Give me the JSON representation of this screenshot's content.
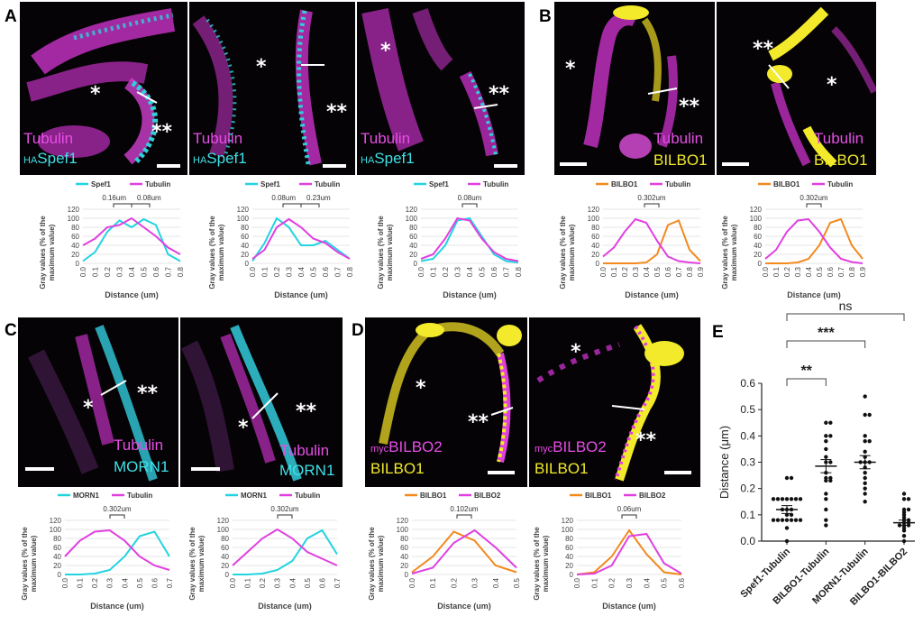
{
  "panels": {
    "A": {
      "letter": "A",
      "images": [
        {
          "tubulin": "Tubulin",
          "pre": "HA",
          "main": "Spef1"
        },
        {
          "tubulin": "Tubulin",
          "pre": "HA",
          "main": "Spef1"
        },
        {
          "tubulin": "Tubulin",
          "pre": "HA",
          "main": "Spef1"
        }
      ]
    },
    "B": {
      "letter": "B",
      "images": [
        {
          "tubulin": "Tubulin",
          "main": "BILBO1"
        },
        {
          "tubulin": "Tubulin",
          "main": "BILBO1"
        }
      ]
    },
    "C": {
      "letter": "C",
      "images": [
        {
          "tubulin": "Tubulin",
          "main": "MORN1"
        },
        {
          "tubulin": "Tubulin",
          "main": "MORN1"
        }
      ]
    },
    "D": {
      "letter": "D",
      "images": [
        {
          "pre": "myc",
          "bilbo2": "BILBO2",
          "main": "BILBO1"
        },
        {
          "pre": "myc",
          "bilbo2": "BILBO2",
          "main": "BILBO1"
        }
      ]
    },
    "E": {
      "letter": "E"
    }
  },
  "asterisk_single": "*",
  "asterisk_double": "**",
  "colors": {
    "tubulin": "#e040e0",
    "spef1": "#22d3e0",
    "bilbo1": "#f28a1e",
    "bilbo2": "#e040e0",
    "morn1": "#22d3e0",
    "yellow": "#f2ea2a"
  },
  "line_plot_text": {
    "ylabel1": "Gray values (% of the",
    "ylabel2": "maximum value)",
    "xlabel": "Distance (um)"
  },
  "chart_data": [
    {
      "type": "line",
      "id": "A1",
      "legend": [
        "Spef1",
        "Tubulin"
      ],
      "annotation": [
        "0.16um",
        "0.08um"
      ],
      "x": [
        0.0,
        0.1,
        0.2,
        0.3,
        0.4,
        0.5,
        0.6,
        0.7,
        0.8
      ],
      "xticks": [
        "0.0",
        "0.1",
        "0.2",
        "0.3",
        "0.4",
        "0.5",
        "0.6",
        "0.7",
        "0.8"
      ],
      "yticks": [
        "0",
        "20",
        "40",
        "60",
        "80",
        "100",
        "120"
      ],
      "ylim": [
        0,
        120
      ],
      "xlim": [
        0,
        0.8
      ],
      "series": [
        {
          "name": "Spef1",
          "values": [
            5,
            25,
            70,
            95,
            80,
            98,
            85,
            20,
            5
          ]
        },
        {
          "name": "Tubulin",
          "values": [
            40,
            55,
            80,
            85,
            100,
            80,
            60,
            35,
            20
          ]
        }
      ]
    },
    {
      "type": "line",
      "id": "A2",
      "legend": [
        "Spef1",
        "Tubulin"
      ],
      "annotation": [
        "0.08um",
        "0.23um"
      ],
      "x": [
        0.0,
        0.1,
        0.2,
        0.3,
        0.4,
        0.5,
        0.6,
        0.7,
        0.8
      ],
      "xticks": [
        "0.0",
        "0.1",
        "0.2",
        "0.3",
        "0.4",
        "0.5",
        "0.6",
        "0.7",
        "0.8"
      ],
      "yticks": [
        "0",
        "20",
        "40",
        "60",
        "80",
        "100",
        "120"
      ],
      "ylim": [
        0,
        120
      ],
      "xlim": [
        0,
        0.8
      ],
      "series": [
        {
          "name": "Spef1",
          "values": [
            5,
            45,
            100,
            80,
            40,
            40,
            50,
            30,
            10
          ]
        },
        {
          "name": "Tubulin",
          "values": [
            10,
            30,
            80,
            98,
            80,
            55,
            45,
            25,
            10
          ]
        }
      ]
    },
    {
      "type": "line",
      "id": "A3",
      "legend": [
        "Spef1",
        "Tubulin"
      ],
      "annotation": [
        "0.08um"
      ],
      "x": [
        0.0,
        0.1,
        0.2,
        0.3,
        0.4,
        0.5,
        0.6,
        0.7,
        0.8
      ],
      "xticks": [
        "0.0",
        "0.1",
        "0.2",
        "0.3",
        "0.4",
        "0.5",
        "0.6",
        "0.7",
        "0.8"
      ],
      "yticks": [
        "0",
        "20",
        "40",
        "60",
        "80",
        "100",
        "120"
      ],
      "ylim": [
        0,
        120
      ],
      "xlim": [
        0,
        0.8
      ],
      "series": [
        {
          "name": "Spef1",
          "values": [
            5,
            10,
            40,
            95,
            100,
            60,
            20,
            5,
            2
          ]
        },
        {
          "name": "Tubulin",
          "values": [
            10,
            20,
            55,
            100,
            95,
            55,
            25,
            10,
            5
          ]
        }
      ]
    },
    {
      "type": "line",
      "id": "B1",
      "legend": [
        "BILBO1",
        "Tubulin"
      ],
      "annotation": [
        "0.302um"
      ],
      "x": [
        0.0,
        0.1,
        0.2,
        0.3,
        0.4,
        0.5,
        0.6,
        0.7,
        0.8,
        0.9
      ],
      "xticks": [
        "0.0",
        "0.1",
        "0.2",
        "0.3",
        "0.4",
        "0.5",
        "0.6",
        "0.7",
        "0.8",
        "0.9"
      ],
      "yticks": [
        "0",
        "20",
        "40",
        "60",
        "80",
        "100",
        "120"
      ],
      "ylim": [
        0,
        120
      ],
      "xlim": [
        0,
        0.9
      ],
      "series": [
        {
          "name": "BILBO1",
          "values": [
            0,
            0,
            0,
            0,
            2,
            20,
            85,
            95,
            30,
            5
          ]
        },
        {
          "name": "Tubulin",
          "values": [
            15,
            35,
            70,
            98,
            90,
            50,
            15,
            5,
            2,
            0
          ]
        }
      ]
    },
    {
      "type": "line",
      "id": "B2",
      "legend": [
        "BILBO1",
        "Tubulin"
      ],
      "annotation": [
        "0.302um"
      ],
      "x": [
        0.0,
        0.1,
        0.2,
        0.3,
        0.4,
        0.5,
        0.6,
        0.7,
        0.8,
        0.9
      ],
      "xticks": [
        "0.0",
        "0.1",
        "0.2",
        "0.3",
        "0.4",
        "0.5",
        "0.6",
        "0.7",
        "0.8",
        "0.9"
      ],
      "yticks": [
        "0",
        "20",
        "40",
        "60",
        "80",
        "100",
        "120"
      ],
      "ylim": [
        0,
        120
      ],
      "xlim": [
        0,
        0.9
      ],
      "series": [
        {
          "name": "BILBO1",
          "values": [
            0,
            0,
            0,
            2,
            10,
            40,
            90,
            98,
            40,
            10
          ]
        },
        {
          "name": "Tubulin",
          "values": [
            10,
            30,
            70,
            95,
            98,
            70,
            35,
            10,
            3,
            0
          ]
        }
      ]
    },
    {
      "type": "line",
      "id": "C1",
      "legend": [
        "MORN1",
        "Tubulin"
      ],
      "annotation": [
        "0.302um"
      ],
      "x": [
        0.0,
        0.1,
        0.2,
        0.3,
        0.4,
        0.5,
        0.6,
        0.7
      ],
      "xticks": [
        "0.0",
        "0.1",
        "0.2",
        "0.3",
        "0.4",
        "0.5",
        "0.6",
        "0.7"
      ],
      "yticks": [
        "0",
        "20",
        "40",
        "60",
        "80",
        "100",
        "120"
      ],
      "ylim": [
        0,
        120
      ],
      "xlim": [
        0,
        0.7
      ],
      "series": [
        {
          "name": "MORN1",
          "values": [
            0,
            0,
            2,
            10,
            40,
            85,
            95,
            40
          ]
        },
        {
          "name": "Tubulin",
          "values": [
            40,
            75,
            95,
            98,
            75,
            40,
            20,
            10
          ]
        }
      ]
    },
    {
      "type": "line",
      "id": "C2",
      "legend": [
        "MORN1",
        "Tubulin"
      ],
      "annotation": [
        "0.302um"
      ],
      "x": [
        0.0,
        0.1,
        0.2,
        0.3,
        0.4,
        0.5,
        0.6,
        0.7
      ],
      "xticks": [
        "0.0",
        "0.1",
        "0.2",
        "0.3",
        "0.4",
        "0.5",
        "0.6",
        "0.7"
      ],
      "yticks": [
        "0",
        "20",
        "40",
        "60",
        "80",
        "100",
        "120"
      ],
      "ylim": [
        0,
        120
      ],
      "xlim": [
        0,
        0.7
      ],
      "series": [
        {
          "name": "MORN1",
          "values": [
            0,
            0,
            2,
            10,
            30,
            80,
            98,
            45
          ]
        },
        {
          "name": "Tubulin",
          "values": [
            20,
            50,
            80,
            100,
            80,
            50,
            35,
            20
          ]
        }
      ]
    },
    {
      "type": "line",
      "id": "D1",
      "legend": [
        "BILBO1",
        "BILBO2"
      ],
      "annotation": [
        "0.102um"
      ],
      "x": [
        0.0,
        0.1,
        0.2,
        0.3,
        0.4,
        0.5
      ],
      "xticks": [
        "0.0",
        "0.1",
        "0.2",
        "0.3",
        "0.4",
        "0.5"
      ],
      "yticks": [
        "0",
        "20",
        "40",
        "60",
        "80",
        "100",
        "120"
      ],
      "ylim": [
        0,
        120
      ],
      "xlim": [
        0,
        0.5
      ],
      "series": [
        {
          "name": "BILBO1",
          "values": [
            5,
            40,
            95,
            75,
            20,
            5
          ]
        },
        {
          "name": "BILBO2",
          "values": [
            2,
            15,
            70,
            98,
            60,
            15
          ]
        }
      ]
    },
    {
      "type": "line",
      "id": "D2",
      "legend": [
        "BILBO1",
        "BILBO2"
      ],
      "annotation": [
        "0.06um"
      ],
      "x": [
        0.0,
        0.1,
        0.2,
        0.3,
        0.4,
        0.5,
        0.6
      ],
      "xticks": [
        "0.0",
        "0.1",
        "0.2",
        "0.3",
        "0.4",
        "0.5",
        "0.6"
      ],
      "yticks": [
        "0",
        "20",
        "40",
        "60",
        "80",
        "100",
        "120"
      ],
      "ylim": [
        0,
        120
      ],
      "xlim": [
        0,
        0.6
      ],
      "series": [
        {
          "name": "BILBO1",
          "values": [
            0,
            5,
            40,
            98,
            45,
            5,
            0
          ]
        },
        {
          "name": "BILBO2",
          "values": [
            0,
            2,
            20,
            85,
            90,
            25,
            2
          ]
        }
      ]
    },
    {
      "type": "scatter",
      "id": "E",
      "ylabel": "Distance (μm)",
      "categories": [
        "Spef1-Tubulin",
        "BILBO1-Tubulin",
        "MORN1-Tubulin",
        "BILBO1-BILBO2"
      ],
      "yticks": [
        "0.0",
        "0.1",
        "0.2",
        "0.3",
        "0.4",
        "0.5",
        "0.6"
      ],
      "ylim": [
        0,
        0.6
      ],
      "means": [
        0.12,
        0.285,
        0.3,
        0.07
      ],
      "sems": [
        0.015,
        0.025,
        0.025,
        0.01
      ],
      "points": [
        [
          0.0,
          0.05,
          0.08,
          0.08,
          0.08,
          0.08,
          0.08,
          0.08,
          0.1,
          0.1,
          0.12,
          0.12,
          0.12,
          0.16,
          0.16,
          0.16,
          0.16,
          0.16,
          0.16,
          0.24,
          0.24,
          0.16,
          0.08
        ],
        [
          0.06,
          0.08,
          0.12,
          0.16,
          0.18,
          0.23,
          0.23,
          0.24,
          0.24,
          0.26,
          0.3,
          0.3,
          0.32,
          0.35,
          0.38,
          0.4,
          0.4,
          0.45,
          0.45
        ],
        [
          0.15,
          0.18,
          0.2,
          0.24,
          0.26,
          0.28,
          0.3,
          0.3,
          0.3,
          0.32,
          0.34,
          0.38,
          0.38,
          0.4,
          0.48,
          0.48,
          0.55,
          0.22
        ],
        [
          0.0,
          0.02,
          0.04,
          0.05,
          0.06,
          0.06,
          0.06,
          0.07,
          0.07,
          0.08,
          0.08,
          0.09,
          0.1,
          0.11,
          0.12,
          0.12,
          0.16,
          0.16,
          0.18
        ]
      ],
      "sig": [
        {
          "label": "**",
          "from": 0,
          "to": 1
        },
        {
          "label": "***",
          "from": 0,
          "to": 2
        },
        {
          "label": "ns",
          "from": 0,
          "to": 3
        }
      ]
    }
  ]
}
